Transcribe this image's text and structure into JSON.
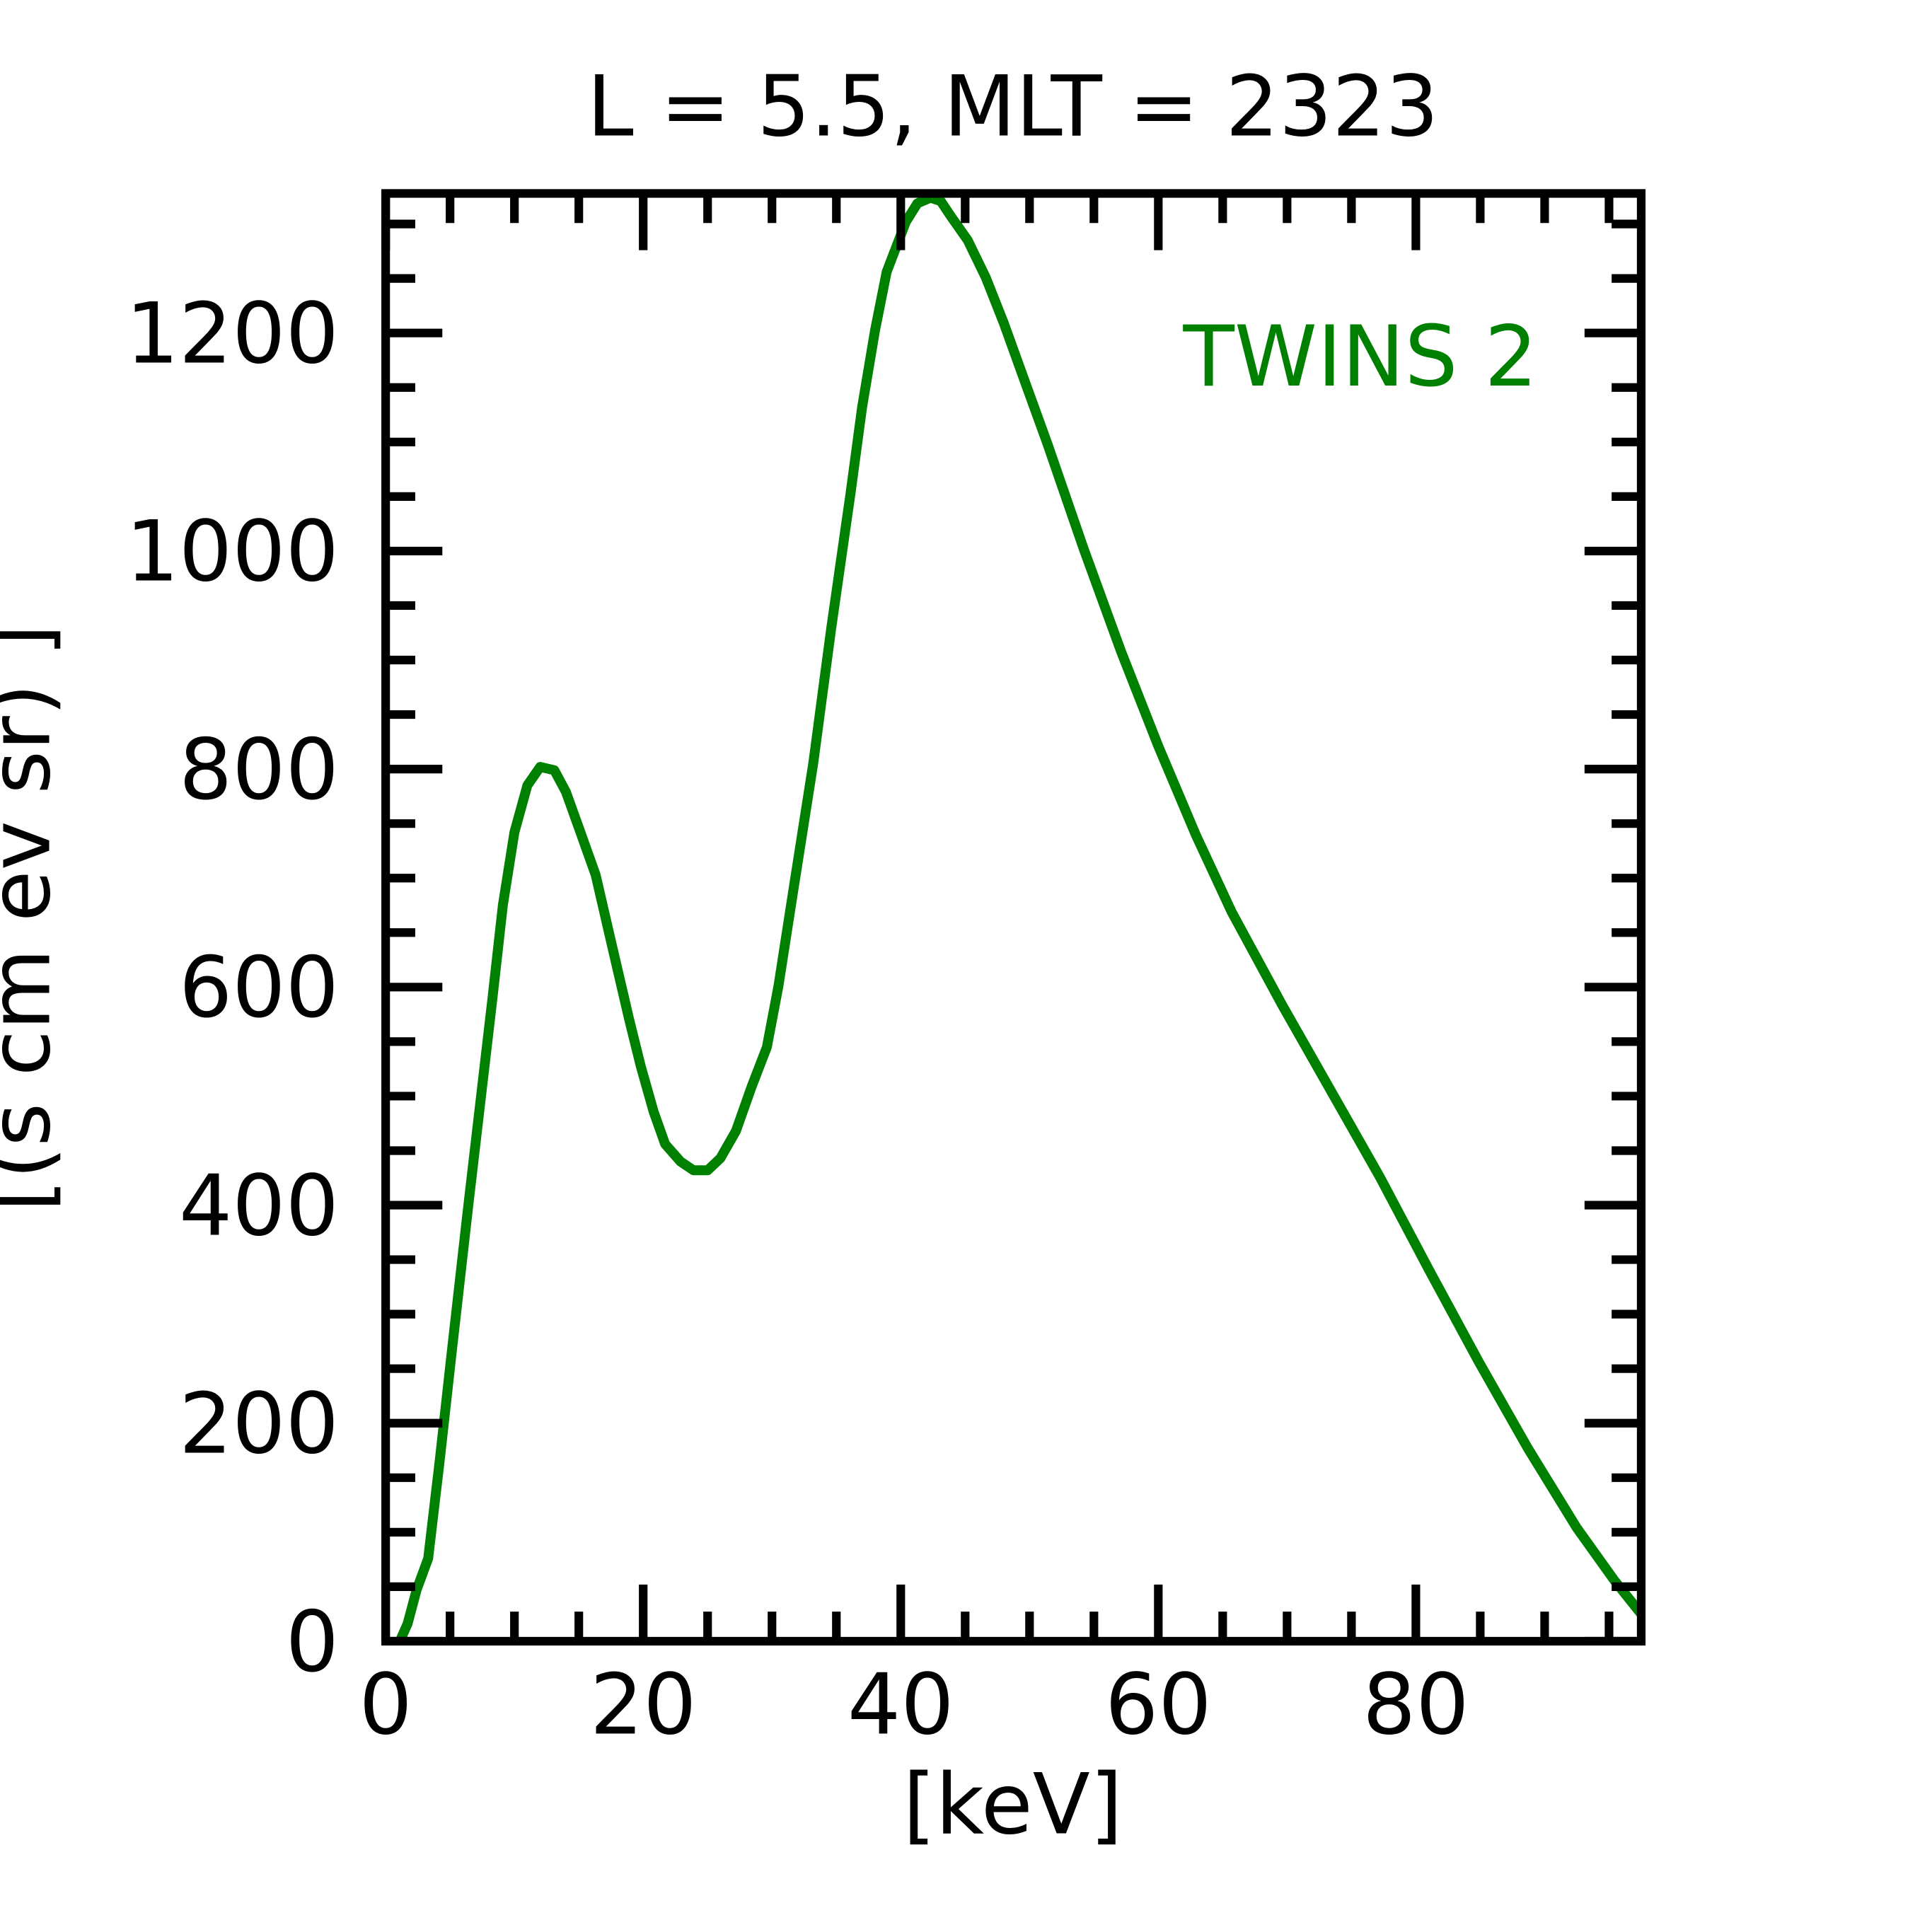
{
  "chart_data": {
    "type": "line",
    "title": "L =  5.5, MLT = 2323",
    "xlabel": "[keV]",
    "ylabel": "[(s cm ev sr)  ]",
    "xlim": [
      0,
      97.5
    ],
    "ylim": [
      0,
      1328
    ],
    "xticks": [
      0,
      20,
      40,
      60,
      80
    ],
    "xtick_labels": [
      "0",
      "20",
      "40",
      "60",
      "80"
    ],
    "yticks": [
      0,
      200,
      400,
      600,
      800,
      1000,
      1200
    ],
    "ytick_labels": [
      "0",
      "200",
      "400",
      "600",
      "800",
      "1000",
      "1200"
    ],
    "x_minor_step": 5,
    "y_minor_step": 50,
    "grid": false,
    "legend_position": "top-right",
    "series": [
      {
        "name": "TWINS 2",
        "color": "#008000",
        "x": [
          1.1,
          1.7,
          2.4,
          3.3,
          4.2,
          5.1,
          6.4,
          8.3,
          9.1,
          10,
          11,
          12,
          13.1,
          14,
          15,
          16.3,
          17.6,
          18.9,
          19.8,
          20.8,
          21.7,
          22.9,
          23.9,
          25,
          26,
          27.2,
          28.4,
          29.6,
          30.5,
          31.7,
          33.2,
          34.6,
          36.1,
          37,
          38,
          38.9,
          40.4,
          41.3,
          42.3,
          43.1,
          43.9,
          45.2,
          46.6,
          48,
          49.5,
          51.4,
          54.2,
          57.1,
          60,
          62.9,
          65.7,
          69.6,
          73.4,
          77.2,
          81,
          84.9,
          88.7,
          92.5,
          95.4,
          97.1,
          97.5
        ],
        "y": [
          0,
          16,
          47,
          76,
          166,
          262,
          398,
          590,
          675,
          742,
          785,
          802,
          799,
          779,
          746,
          703,
          637,
          571,
          528,
          486,
          456,
          440,
          432,
          432,
          443,
          468,
          508,
          545,
          601,
          692,
          805,
          929,
          1053,
          1132,
          1202,
          1256,
          1302,
          1319,
          1324,
          1321,
          1307,
          1285,
          1251,
          1209,
          1160,
          1098,
          1002,
          908,
          821,
          740,
          669,
          584,
          505,
          426,
          341,
          256,
          177,
          104,
          56,
          31,
          25
        ]
      }
    ]
  }
}
